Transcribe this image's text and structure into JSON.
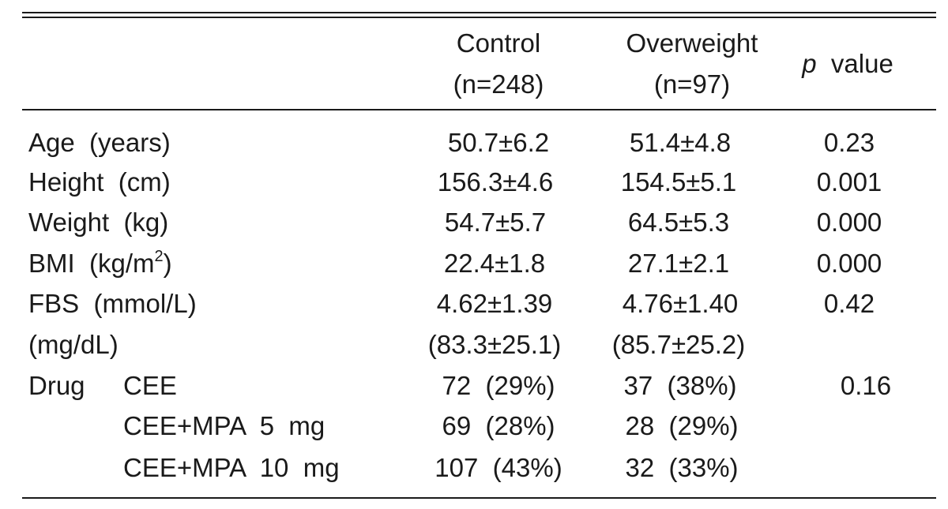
{
  "header": {
    "control_line1": "Control",
    "control_line2": "(n=248)",
    "overweight_line1": "Overweight",
    "overweight_line2": "(n=97)",
    "p_symbol": "p",
    "p_label": "value"
  },
  "rows": [
    {
      "label": "Age  (years)",
      "control": "50.7±6.2",
      "overweight": "51.4±4.8",
      "p": "0.23"
    },
    {
      "label": "Height  (cm)",
      "control": "156.3±4.6",
      "overweight": "154.5±5.1",
      "p": "0.001"
    },
    {
      "label": "Weight  (kg)",
      "control": "54.7±5.7",
      "overweight": "64.5±5.3",
      "p": "0.000"
    },
    {
      "label_prefix": "BMI  (kg/m",
      "label_sup": "2",
      "label_suffix": ")",
      "control": "22.4±1.8",
      "overweight": "27.1±2.1",
      "p": "0.000"
    },
    {
      "label": "FBS  (mmol/L)",
      "control": "4.62±1.39",
      "overweight": "4.76±1.40",
      "p": "0.42"
    },
    {
      "label": "(mg/dL)",
      "control": "(83.3±25.1)",
      "overweight": "(85.7±25.2)"
    },
    {
      "label": "Drug",
      "sublabel": "CEE",
      "control": "72  (29%)",
      "overweight": "37  (38%)",
      "p": "0.16"
    },
    {
      "sublabel": "CEE+MPA  5  mg",
      "control": "69  (28%)",
      "overweight": "28  (29%)"
    },
    {
      "sublabel": "CEE+MPA  10  mg",
      "control": "107  (43%)",
      "overweight": "32  (33%)"
    }
  ]
}
